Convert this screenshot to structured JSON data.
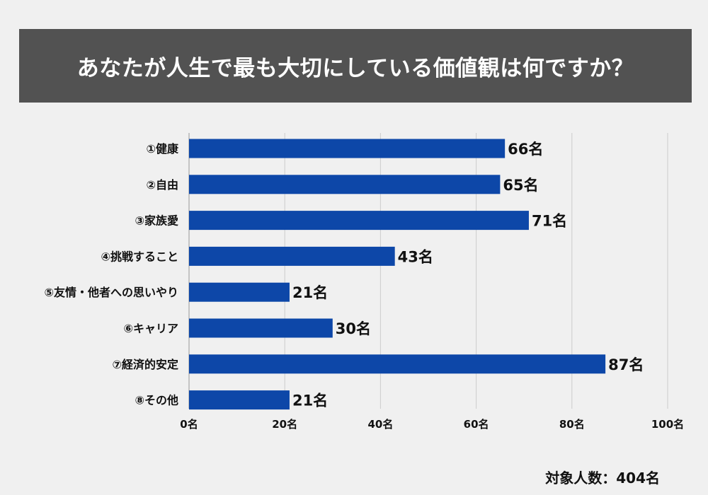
{
  "title": "あなたが人生で最も大切にしている価値観は何ですか？",
  "footnote": "対象人数：404名",
  "colors": {
    "bar": "#0d47a8",
    "banner": "#525252",
    "grid": "#cccccc"
  },
  "chart_data": {
    "type": "bar",
    "orientation": "horizontal",
    "categories": [
      "①健康",
      "②自由",
      "③家族愛",
      "④挑戦すること",
      "⑤友情・他者への思いやり",
      "⑥キャリア",
      "⑦経済的安定",
      "⑧その他"
    ],
    "values": [
      66,
      65,
      71,
      43,
      21,
      30,
      87,
      21
    ],
    "value_labels": [
      "66名",
      "65名",
      "71名",
      "43名",
      "21名",
      "30名",
      "87名",
      "21名"
    ],
    "xlim": [
      0,
      100
    ],
    "ticks": [
      0,
      20,
      40,
      60,
      80,
      100
    ],
    "tick_labels": [
      "0名",
      "20名",
      "40名",
      "60名",
      "80名",
      "100名"
    ],
    "grid": true
  }
}
